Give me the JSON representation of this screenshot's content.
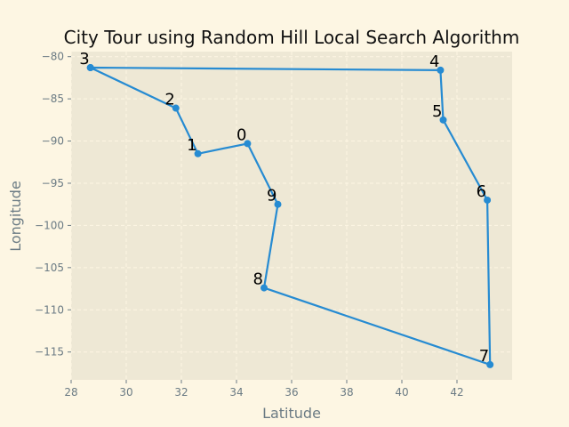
{
  "chart_data": {
    "type": "line",
    "title": "City Tour using Random Hill Local Search Algorithm",
    "xlabel": "Latitude",
    "ylabel": "Longitude",
    "xlim": [
      28,
      44
    ],
    "ylim": [
      -118.3,
      -79.4
    ],
    "xticks": [
      28,
      30,
      32,
      34,
      36,
      38,
      40,
      42
    ],
    "xtick_labels": [
      "28",
      "30",
      "32",
      "34",
      "36",
      "38",
      "40",
      "42"
    ],
    "yticks": [
      -80,
      -85,
      -90,
      -95,
      -100,
      -105,
      -110,
      -115
    ],
    "ytick_labels": [
      "−80",
      "−85",
      "−90",
      "−95",
      "−100",
      "−105",
      "−110",
      "−115"
    ],
    "grid": true,
    "line_color": "#268bd2",
    "series": [
      {
        "points": [
          {
            "label": "3",
            "x": 28.7,
            "y": -81.3
          },
          {
            "label": "4",
            "x": 41.4,
            "y": -81.6
          },
          {
            "label": "5",
            "x": 41.5,
            "y": -87.5
          },
          {
            "label": "6",
            "x": 43.1,
            "y": -97.0
          },
          {
            "label": "7",
            "x": 43.2,
            "y": -116.5
          },
          {
            "label": "8",
            "x": 35.0,
            "y": -107.4
          },
          {
            "label": "9",
            "x": 35.5,
            "y": -97.5
          },
          {
            "label": "0",
            "x": 34.4,
            "y": -90.3
          },
          {
            "label": "1",
            "x": 32.6,
            "y": -91.5
          },
          {
            "label": "2",
            "x": 31.8,
            "y": -86.1
          },
          {
            "label": "3",
            "x": 28.7,
            "y": -81.3
          }
        ]
      }
    ]
  }
}
